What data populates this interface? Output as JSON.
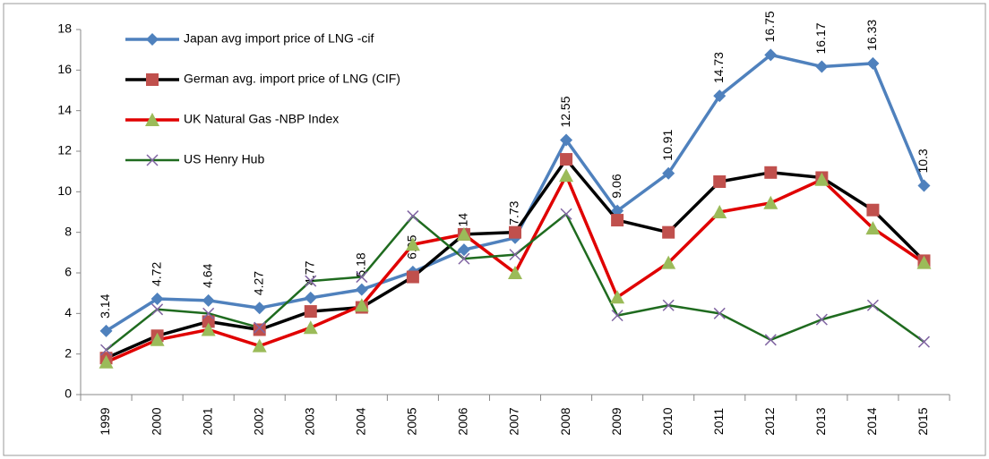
{
  "chart_data": {
    "type": "line",
    "categories": [
      "1999",
      "2000",
      "2001",
      "2002",
      "2003",
      "2004",
      "2005",
      "2006",
      "2007",
      "2008",
      "2009",
      "2010",
      "2011",
      "2012",
      "2013",
      "2014",
      "2015"
    ],
    "series": [
      {
        "name": "Japan avg import price of LNG -cif",
        "color": "#4f81bd",
        "marker": "diamond",
        "marker_color": "#4f81bd",
        "data_labels": true,
        "values": [
          3.14,
          4.72,
          4.64,
          4.27,
          4.77,
          5.18,
          6.05,
          7.14,
          7.73,
          12.55,
          9.06,
          10.91,
          14.73,
          16.75,
          16.17,
          16.33,
          10.3
        ]
      },
      {
        "name": "German avg. import price of LNG (CIF)",
        "color": "#000000",
        "marker": "square",
        "marker_color": "#c0504d",
        "data_labels": false,
        "values": [
          1.8,
          2.9,
          3.6,
          3.2,
          4.1,
          4.3,
          5.8,
          7.9,
          8.0,
          11.6,
          8.6,
          8.0,
          10.5,
          10.95,
          10.7,
          9.1,
          6.6
        ]
      },
      {
        "name": "UK Natural Gas -NBP Index",
        "color": "#e00000",
        "marker": "triangle",
        "marker_color": "#9bbb59",
        "data_labels": false,
        "values": [
          1.6,
          2.7,
          3.2,
          2.4,
          3.3,
          4.4,
          7.4,
          7.9,
          6.0,
          10.8,
          4.8,
          6.5,
          9.0,
          9.45,
          10.6,
          8.2,
          6.5
        ]
      },
      {
        "name": "US Henry Hub",
        "color": "#1f6b1f",
        "marker": "x",
        "marker_color": "#8064a2",
        "data_labels": false,
        "values": [
          2.2,
          4.2,
          4.0,
          3.3,
          5.6,
          5.8,
          8.8,
          6.7,
          6.9,
          8.9,
          3.9,
          4.4,
          4.0,
          2.7,
          3.7,
          4.4,
          2.6
        ]
      }
    ],
    "ylim": [
      0,
      18
    ],
    "yticks": [
      0,
      2,
      4,
      6,
      8,
      10,
      12,
      14,
      16,
      18
    ],
    "grid": false,
    "legend": "top-left"
  }
}
